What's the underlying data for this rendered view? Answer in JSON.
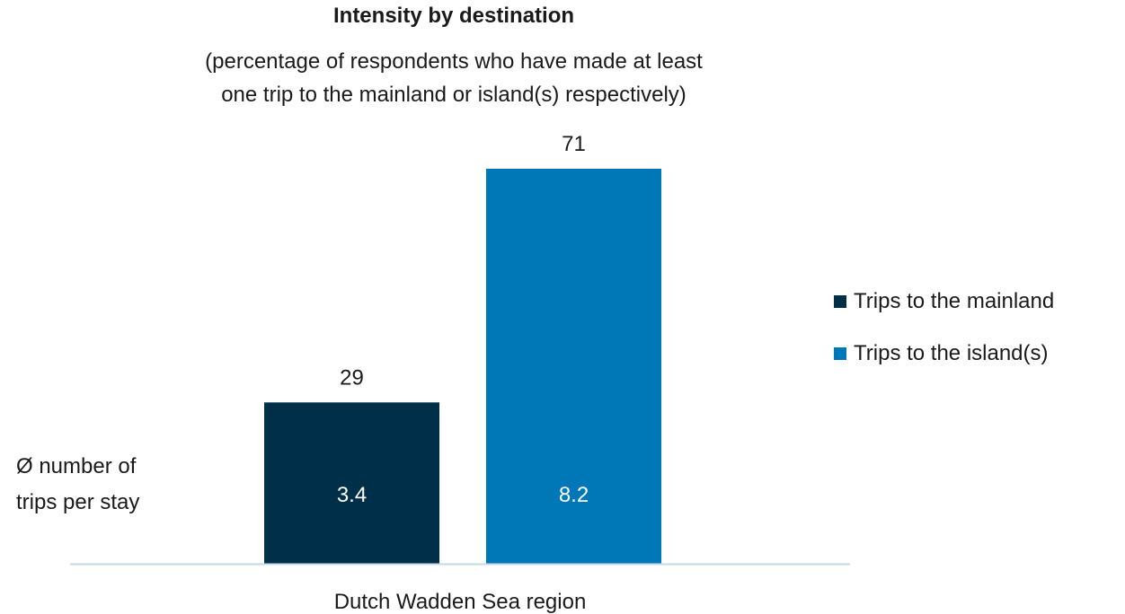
{
  "chart_data": {
    "type": "bar",
    "title": "Intensity by destination",
    "subtitle": "(percentage of respondents who have made at least\none trip to the mainland or island(s) respectively)",
    "categories": [
      "Dutch Wadden Sea region"
    ],
    "series": [
      {
        "name": "Trips to the mainland",
        "values": [
          29
        ],
        "inner_labels": [
          "3.4"
        ],
        "color": "#003049"
      },
      {
        "name": "Trips to the island(s)",
        "values": [
          71
        ],
        "inner_labels": [
          "8.2"
        ],
        "color": "#0077b6"
      }
    ],
    "ylim": [
      0,
      71
    ],
    "grid": false,
    "legend_position": "right",
    "annotation": "Ø number of\ntrips per stay",
    "axis_color": "#c5d9e8"
  }
}
